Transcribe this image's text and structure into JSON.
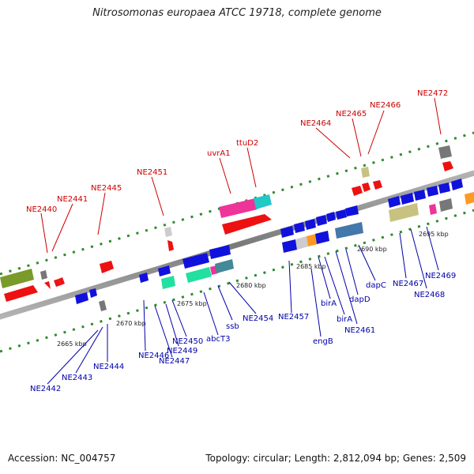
{
  "title": "Nitrosomonas europaea ATCC 19718, complete genome",
  "accession": "Accession: NC_004757",
  "topology": "Topology: circular; Length: 2,812,094 bp; Genes: 2,509",
  "colors": {
    "forward_label": "#cc0000",
    "reverse_label": "#0000aa",
    "backbone": "#8a8a8a",
    "tick": "#2e8b2e"
  },
  "scale_labels": [
    "2665 kbp",
    "2670 kbp",
    "2675 kbp",
    "2680 kbp",
    "2685 kbp",
    "2690 kbp",
    "2695 kbp"
  ],
  "forward_genes": [
    "NE2440",
    "NE2441",
    "NE2445",
    "NE2451",
    "uvrA1",
    "ttuD2",
    "NE2464",
    "NE2465",
    "NE2466",
    "NE2472"
  ],
  "reverse_genes": [
    "NE2442",
    "NE2443",
    "NE2444",
    "NE2446",
    "NE2447",
    "NE2449",
    "NE2450",
    "abcT3",
    "ssb",
    "NE2454",
    "NE2457",
    "engB",
    "birA",
    "birA",
    "NE2461",
    "dapD",
    "dapC",
    "NE2467",
    "NE2468",
    "NE2469"
  ]
}
